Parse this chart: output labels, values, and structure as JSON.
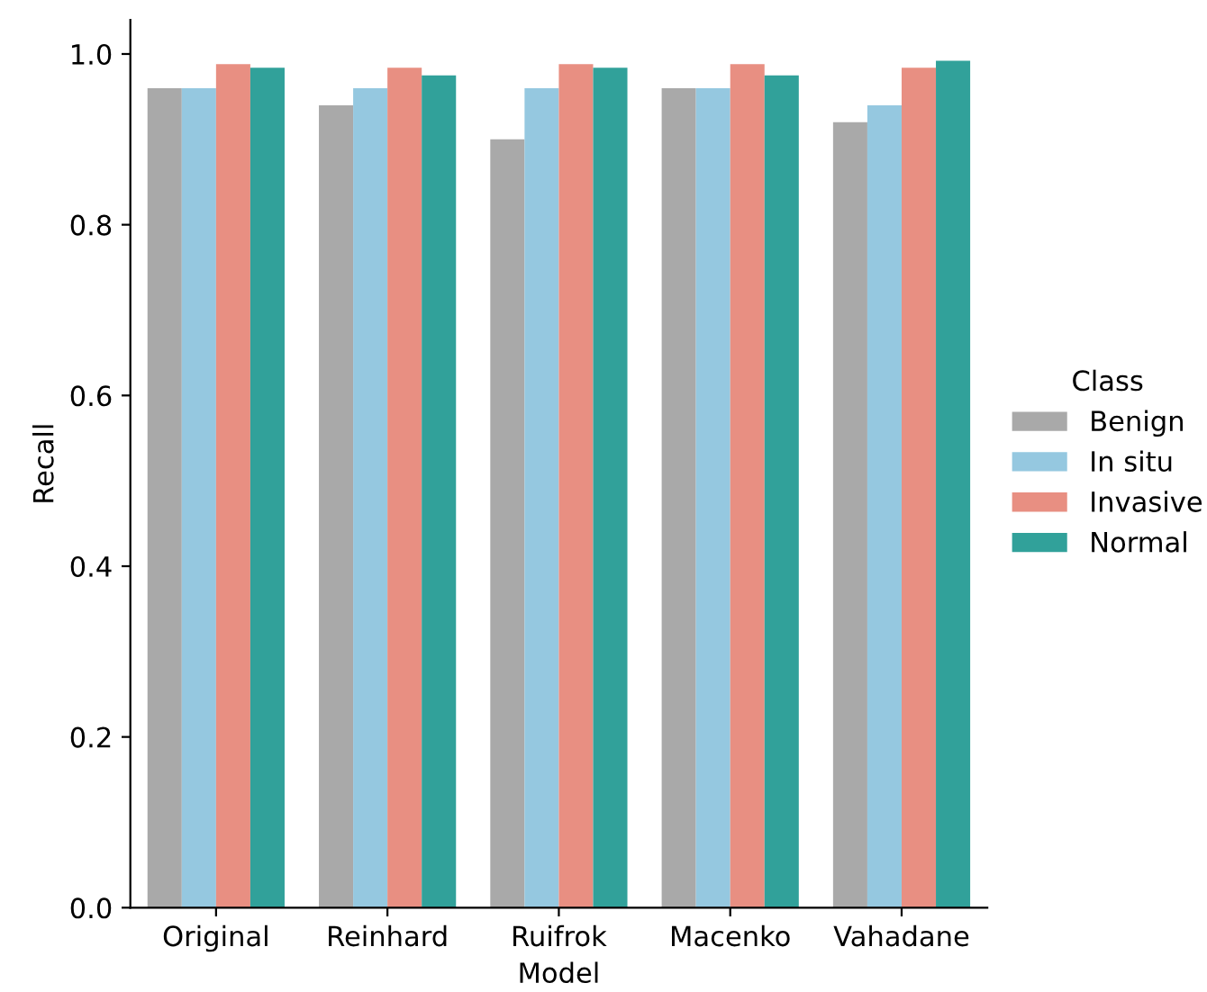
{
  "chart_data": {
    "type": "bar",
    "xlabel": "Model",
    "ylabel": "Recall",
    "legend_title": "Class",
    "legend": "right",
    "categories": [
      "Original",
      "Reinhard",
      "Ruifrok",
      "Macenko",
      "Vahadane"
    ],
    "series": [
      {
        "name": "Benign",
        "color": "#a9a9a9",
        "values": [
          0.96,
          0.94,
          0.9,
          0.96,
          0.92
        ]
      },
      {
        "name": "In situ",
        "color": "#95c8e0",
        "values": [
          0.96,
          0.96,
          0.96,
          0.96,
          0.94
        ]
      },
      {
        "name": "Invasive",
        "color": "#e88f82",
        "values": [
          0.988,
          0.984,
          0.988,
          0.988,
          0.984
        ]
      },
      {
        "name": "Normal",
        "color": "#31a19a",
        "values": [
          0.984,
          0.975,
          0.984,
          0.975,
          0.992
        ]
      }
    ],
    "ylim": [
      0,
      1.04
    ],
    "yticks": [
      {
        "value": 0,
        "label": "0.0"
      },
      {
        "value": 0.2,
        "label": "0.2"
      },
      {
        "value": 0.4,
        "label": "0.4"
      },
      {
        "value": 0.6,
        "label": "0.6"
      },
      {
        "value": 0.8,
        "label": "0.8"
      },
      {
        "value": 1.0,
        "label": "1.0"
      }
    ],
    "grid": false
  }
}
